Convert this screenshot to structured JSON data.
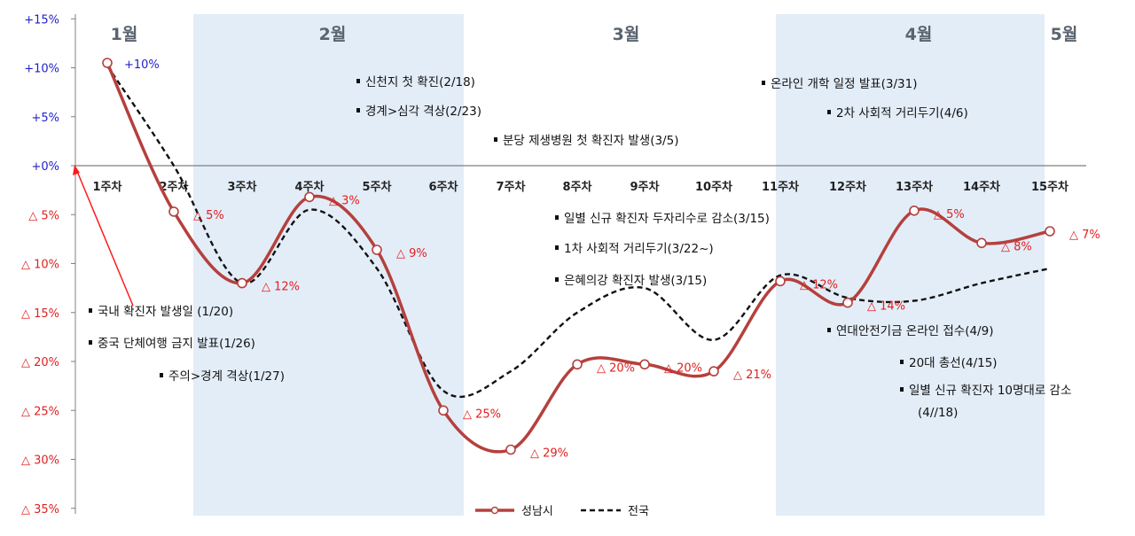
{
  "chart_data": {
    "type": "line",
    "categories": [
      "1주차",
      "2주차",
      "3주차",
      "4주차",
      "5주차",
      "6주차",
      "7주차",
      "8주차",
      "9주차",
      "10주차",
      "11주차",
      "12주차",
      "13주차",
      "14주차",
      "15주차"
    ],
    "ylim": [
      -35,
      15
    ],
    "yticks": [
      15,
      10,
      5,
      0,
      -5,
      -10,
      -15,
      -20,
      -25,
      -30,
      -35
    ],
    "ytick_labels": [
      "+15%",
      "+10%",
      "+5%",
      "+0%",
      "△ 5%",
      "△ 10%",
      "△ 15%",
      "△ 20%",
      "△ 25%",
      "△ 30%",
      "△ 35%"
    ],
    "months": [
      "1월",
      "2월",
      "3월",
      "4월",
      "5월"
    ],
    "series": [
      {
        "name": "성남시",
        "color": "#b5403d",
        "style": "solid-marker",
        "values": [
          10.5,
          -4.7,
          -12,
          -3.2,
          -8.6,
          -25,
          -29,
          -20.3,
          -20.3,
          -21,
          -11.8,
          -14,
          -4.6,
          -7.9,
          -6.7
        ],
        "labels": [
          "+10%",
          "△ 5%",
          "△ 12%",
          "△ 3%",
          "△ 9%",
          "△ 25%",
          "△ 29%",
          "△ 20%",
          "△ 20%",
          "△ 21%",
          "△ 12%",
          "△ 14%",
          "△ 5%",
          "△ 8%",
          "△ 7%"
        ]
      },
      {
        "name": "전국",
        "color": "#111111",
        "style": "dashed",
        "values": [
          10.2,
          0,
          -12,
          -4.5,
          -10.5,
          -23,
          -21,
          -15,
          -12.5,
          -17.8,
          -11.2,
          -13.5,
          -13.8,
          -12,
          -10.5
        ]
      }
    ],
    "annotations": [
      "국내 확진자 발생일 (1/20)",
      "중국 단체여행 금지 발표(1/26)",
      "주의>경계 격상(1/27)",
      "신천지 첫 확진(2/18)",
      "경계>심각 격상(2/23)",
      "분당 제생병원 첫 확진자 발생(3/5)",
      "일별 신규 확진자 두자리수로 감소(3/15)",
      "1차 사회적 거리두기(3/22~)",
      "은혜의강 확진자 발생(3/15)",
      "온라인 개학 일정 발표(3/31)",
      "2차 사회적 거리두기(4/6)",
      "연대안전기금 온라인 접수(4/9)",
      "20대 총선(4/15)",
      "일별 신규 확진자 10명대로 감소",
      "(4//18)"
    ],
    "legend_position": "bottom-center",
    "shaded_months": [
      "2월",
      "4월"
    ],
    "shade_color": "#e3edf8"
  }
}
